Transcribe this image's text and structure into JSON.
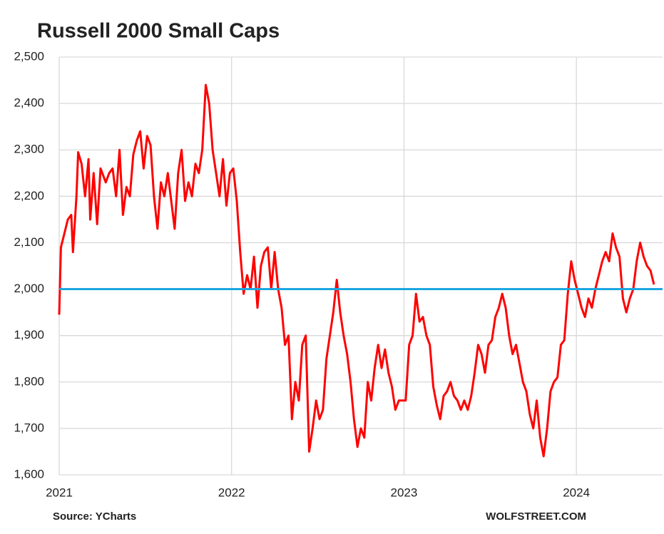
{
  "chart_data": {
    "type": "line",
    "title": "Russell 2000 Small Caps",
    "source": "Source: YCharts",
    "credit": "WOLFSTREET.COM",
    "xlim": [
      2021,
      2024.5
    ],
    "xticks": [
      2021,
      2022,
      2023,
      2024
    ],
    "ylim": [
      1600,
      2500
    ],
    "yticks": [
      {
        "value": 1600,
        "label": "1,600"
      },
      {
        "value": 1700,
        "label": "1,700"
      },
      {
        "value": 1800,
        "label": "1,800"
      },
      {
        "value": 1900,
        "label": "1,900"
      },
      {
        "value": 2000,
        "label": "2,000"
      },
      {
        "value": 2100,
        "label": "2,100"
      },
      {
        "value": 2200,
        "label": "2,200"
      },
      {
        "value": 2300,
        "label": "2,300"
      },
      {
        "value": 2400,
        "label": "2,400"
      },
      {
        "value": 2500,
        "label": "2,500"
      }
    ],
    "grid": true,
    "reference_line": {
      "value": 2000,
      "color": "#1aa7e0"
    },
    "x": [
      2021.0,
      2021.01,
      2021.03,
      2021.05,
      2021.07,
      2021.08,
      2021.1,
      2021.11,
      2021.13,
      2021.15,
      2021.17,
      2021.18,
      2021.2,
      2021.22,
      2021.24,
      2021.27,
      2021.29,
      2021.31,
      2021.33,
      2021.35,
      2021.37,
      2021.39,
      2021.41,
      2021.43,
      2021.45,
      2021.47,
      2021.49,
      2021.51,
      2021.53,
      2021.55,
      2021.57,
      2021.59,
      2021.61,
      2021.63,
      2021.65,
      2021.67,
      2021.69,
      2021.71,
      2021.73,
      2021.75,
      2021.77,
      2021.79,
      2021.81,
      2021.83,
      2021.85,
      2021.87,
      2021.89,
      2021.91,
      2021.93,
      2021.95,
      2021.97,
      2021.99,
      2022.01,
      2022.03,
      2022.05,
      2022.07,
      2022.09,
      2022.11,
      2022.13,
      2022.15,
      2022.17,
      2022.19,
      2022.21,
      2022.23,
      2022.25,
      2022.27,
      2022.29,
      2022.31,
      2022.33,
      2022.35,
      2022.37,
      2022.39,
      2022.41,
      2022.43,
      2022.45,
      2022.47,
      2022.49,
      2022.51,
      2022.53,
      2022.55,
      2022.57,
      2022.59,
      2022.61,
      2022.63,
      2022.65,
      2022.67,
      2022.69,
      2022.71,
      2022.73,
      2022.75,
      2022.77,
      2022.79,
      2022.81,
      2022.83,
      2022.85,
      2022.87,
      2022.89,
      2022.91,
      2022.93,
      2022.95,
      2022.97,
      2022.99,
      2023.01,
      2023.03,
      2023.05,
      2023.07,
      2023.09,
      2023.11,
      2023.13,
      2023.15,
      2023.17,
      2023.19,
      2023.21,
      2023.23,
      2023.25,
      2023.27,
      2023.29,
      2023.31,
      2023.33,
      2023.35,
      2023.37,
      2023.39,
      2023.41,
      2023.43,
      2023.45,
      2023.47,
      2023.49,
      2023.51,
      2023.53,
      2023.55,
      2023.57,
      2023.59,
      2023.61,
      2023.63,
      2023.65,
      2023.67,
      2023.69,
      2023.71,
      2023.73,
      2023.75,
      2023.77,
      2023.79,
      2023.81,
      2023.83,
      2023.85,
      2023.87,
      2023.89,
      2023.91,
      2023.93,
      2023.95,
      2023.97,
      2023.99,
      2024.01,
      2024.03,
      2024.05,
      2024.07,
      2024.09,
      2024.11,
      2024.13,
      2024.15,
      2024.17,
      2024.19,
      2024.21,
      2024.23,
      2024.25,
      2024.27,
      2024.29,
      2024.31,
      2024.33,
      2024.35,
      2024.37,
      2024.39,
      2024.41,
      2024.43,
      2024.45
    ],
    "series": [
      {
        "name": "Russell 2000",
        "color": "#ff0000",
        "values": [
          1945,
          2090,
          2120,
          2150,
          2160,
          2080,
          2200,
          2295,
          2270,
          2200,
          2280,
          2150,
          2250,
          2140,
          2260,
          2230,
          2250,
          2260,
          2200,
          2300,
          2160,
          2220,
          2200,
          2290,
          2320,
          2340,
          2260,
          2330,
          2310,
          2200,
          2130,
          2230,
          2200,
          2250,
          2190,
          2130,
          2250,
          2300,
          2190,
          2230,
          2200,
          2270,
          2250,
          2300,
          2440,
          2400,
          2300,
          2250,
          2200,
          2280,
          2180,
          2250,
          2260,
          2190,
          2080,
          1990,
          2030,
          2000,
          2070,
          1960,
          2050,
          2080,
          2090,
          2000,
          2080,
          2000,
          1960,
          1880,
          1900,
          1720,
          1800,
          1760,
          1880,
          1900,
          1650,
          1700,
          1760,
          1720,
          1740,
          1850,
          1900,
          1950,
          2020,
          1950,
          1900,
          1860,
          1800,
          1720,
          1660,
          1700,
          1680,
          1800,
          1760,
          1830,
          1880,
          1830,
          1870,
          1820,
          1790,
          1740,
          1760,
          1760,
          1760,
          1880,
          1900,
          1990,
          1930,
          1940,
          1900,
          1880,
          1790,
          1750,
          1720,
          1770,
          1780,
          1800,
          1770,
          1760,
          1740,
          1760,
          1740,
          1770,
          1820,
          1880,
          1860,
          1820,
          1880,
          1890,
          1940,
          1960,
          1990,
          1960,
          1900,
          1860,
          1880,
          1840,
          1800,
          1780,
          1730,
          1700,
          1760,
          1680,
          1640,
          1700,
          1780,
          1800,
          1810,
          1880,
          1890,
          1990,
          2060,
          2020,
          1990,
          1960,
          1940,
          1980,
          1960,
          2000,
          2030,
          2060,
          2080,
          2060,
          2120,
          2090,
          2070,
          1980,
          1950,
          1980,
          2000,
          2060,
          2100,
          2070,
          2050,
          2040,
          2010
        ]
      }
    ]
  }
}
